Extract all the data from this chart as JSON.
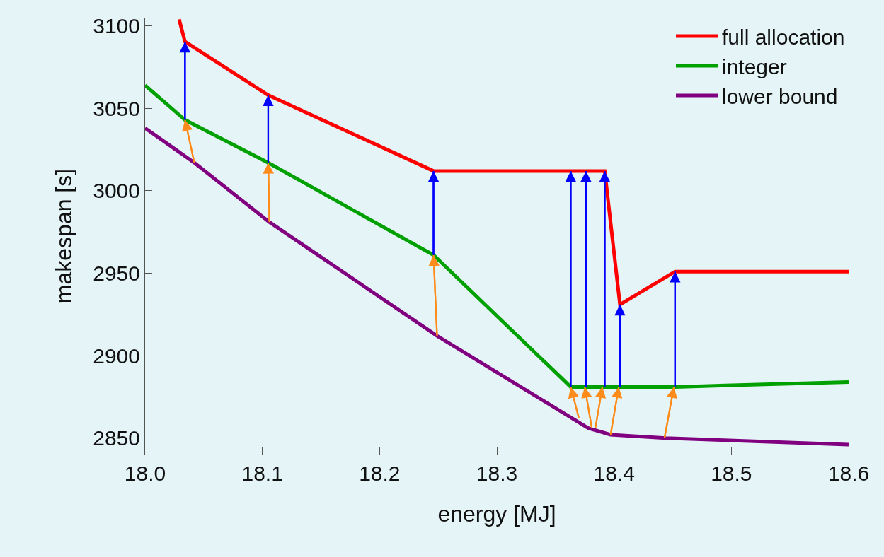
{
  "chart_data": {
    "type": "line",
    "xlabel": "energy [MJ]",
    "ylabel": "makespan [s]",
    "xlim": [
      18.0,
      18.6
    ],
    "ylim": [
      2840,
      3105
    ],
    "xticks": [
      {
        "value": 18.0,
        "label": "18.0"
      },
      18.1,
      18.2,
      18.3,
      18.4,
      18.5,
      18.6
    ],
    "yticks": [
      2850,
      2900,
      2950,
      3000,
      3050,
      3100
    ],
    "grid": false,
    "legend": "top right",
    "series": [
      {
        "name": "full allocation",
        "color": "#ff0000",
        "x": [
          18.029,
          18.034,
          18.105,
          18.246,
          18.392,
          18.405,
          18.452,
          18.6
        ],
        "values": [
          3104,
          3090.5,
          3058,
          3012,
          3012,
          2931,
          2951,
          2951
        ]
      },
      {
        "name": "integer",
        "color": "#00a000",
        "x": [
          18.0,
          18.034,
          18.105,
          18.246,
          18.363,
          18.452,
          18.6
        ],
        "values": [
          3064,
          3043,
          3017,
          2961,
          2881,
          2881,
          2884
        ]
      },
      {
        "name": "lower bound",
        "color": "#800080",
        "x": [
          18.0,
          18.042,
          18.106,
          18.249,
          18.378,
          18.397,
          18.444,
          18.6
        ],
        "values": [
          3038,
          3017,
          2981,
          2912,
          2856,
          2852,
          2850,
          2846
        ]
      },
      {
        "type": "line",
        "color": "#ff8c1a",
        "x": [
          18.042,
          18.034,
          null,
          18.106,
          18.105,
          null,
          18.249,
          18.246,
          null,
          18.37,
          18.363,
          null,
          18.381,
          18.375,
          null,
          18.384,
          18.39,
          null,
          18.397,
          18.404,
          null,
          18.443,
          18.451
        ],
        "values": [
          3017,
          3043,
          null,
          2981,
          3017,
          null,
          2912,
          2961,
          null,
          2862,
          2881,
          null,
          2856,
          2881,
          null,
          2856,
          2881,
          null,
          2852,
          2881,
          null,
          2850,
          2881
        ]
      },
      {
        "type": "line",
        "color": "#0000ff",
        "x": [
          18.034,
          18.034,
          null,
          18.105,
          18.105,
          null,
          18.246,
          18.246,
          null,
          18.363,
          18.363,
          null,
          18.376,
          18.376,
          null,
          18.392,
          18.392,
          null,
          18.405,
          18.405,
          null,
          18.452,
          18.452
        ],
        "values": [
          3043,
          3090.5,
          null,
          3017,
          3058,
          null,
          2961,
          3012,
          null,
          2881,
          3012,
          null,
          2881,
          3012,
          null,
          2881,
          3012,
          null,
          2881,
          2931,
          null,
          2881,
          2951
        ]
      }
    ]
  }
}
